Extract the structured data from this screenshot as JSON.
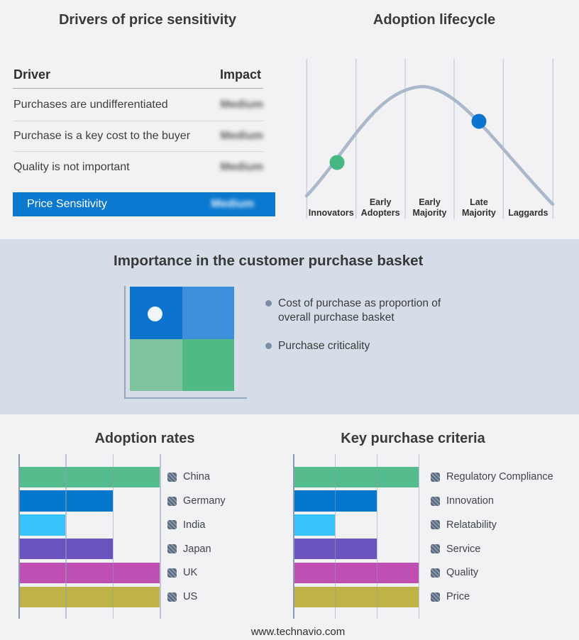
{
  "page": {
    "footer_text": "www.technavio.com",
    "background": "#f2f2f4",
    "band_background": "#d5dde8"
  },
  "drivers_table": {
    "title": "Drivers of price sensitivity",
    "columns": [
      "Driver",
      "Impact"
    ],
    "rows": [
      {
        "driver": "Purchases are undifferentiated",
        "impact": "Medium",
        "impact_blurred": true
      },
      {
        "driver": "Purchase is a key cost to the buyer",
        "impact": "Medium",
        "impact_blurred": true
      },
      {
        "driver": "Quality is not important",
        "impact": "Medium",
        "impact_blurred": true
      }
    ],
    "highlight_row": {
      "label": "Price Sensitivity",
      "impact": "Medium",
      "impact_blurred": true,
      "background": "#0b79cf"
    }
  },
  "basket": {
    "title": "Importance in the customer purchase basket",
    "bullets": [
      "Cost of purchase as proportion of overall purchase basket",
      "Purchase criticality"
    ],
    "quadrant": {
      "top_left": "#0c73cf",
      "top_right": "#3d8edb",
      "bottom_left": "#7fc49e",
      "bottom_right": "#4fba85",
      "dot_color": "#eef6fc"
    }
  },
  "chart_data": [
    {
      "id": "adoption_rates",
      "type": "bar",
      "orientation": "horizontal",
      "title": "Adoption rates",
      "categories": [
        "China",
        "Germany",
        "India",
        "Japan",
        "UK",
        "US"
      ],
      "values": [
        3,
        2,
        1,
        2,
        3,
        3
      ],
      "xlim": [
        0,
        3
      ],
      "axis_tick_labels_shown": false,
      "colors": [
        "#55bc8e",
        "#0577cd",
        "#35c3fa",
        "#6a53bd",
        "#c04fb4",
        "#bfb348"
      ],
      "legend_position": "right",
      "legend_icon": "blurred-flag-hatch-square",
      "gridlines": true
    },
    {
      "id": "key_purchase_criteria",
      "type": "bar",
      "orientation": "horizontal",
      "title": "Key purchase criteria",
      "categories": [
        "Regulatory Compliance",
        "Innovation",
        "Relatability",
        "Service",
        "Quality",
        "Price"
      ],
      "values": [
        3,
        2,
        1,
        2,
        3,
        3
      ],
      "xlim": [
        0,
        3
      ],
      "axis_tick_labels_shown": false,
      "colors": [
        "#55bc8e",
        "#0577cd",
        "#35c3fa",
        "#6a53bd",
        "#c04fb4",
        "#bfb348"
      ],
      "legend_position": "right",
      "legend_icon": "blurred-hatch-square",
      "gridlines": true
    },
    {
      "id": "adoption_lifecycle",
      "type": "line",
      "title": "Adoption lifecycle",
      "shape": "bell-curve",
      "curve_color": "#abb8cb",
      "x_stages": [
        "Innovators",
        "Early Adopters",
        "Early Majority",
        "Late Majority",
        "Laggards"
      ],
      "markers": [
        {
          "stage": "Innovators",
          "position": "rising-slope",
          "color": "#45b783"
        },
        {
          "stage": "Late Majority",
          "position": "falling-slope",
          "color": "#0b74cc"
        }
      ]
    }
  ]
}
